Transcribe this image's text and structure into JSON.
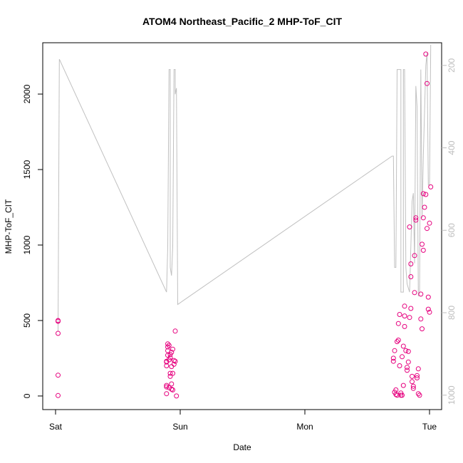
{
  "chart_data": {
    "type": "scatter",
    "title": "ATOM4 Northeast_Pacific_2 MHP-ToF_CIT",
    "xlabel": "Date",
    "ylabel": "MHP-ToF_CIT",
    "x_axis": {
      "min_day": 0,
      "max_day": 3,
      "ticks": [
        {
          "day": 0,
          "label": "Sat"
        },
        {
          "day": 1,
          "label": "Sun"
        },
        {
          "day": 2,
          "label": "Mon"
        },
        {
          "day": 3,
          "label": "Tue"
        }
      ]
    },
    "ylim": [
      -90,
      2340
    ],
    "yticks": [
      0,
      500,
      1000,
      1500,
      2000
    ],
    "y2lim": [
      1035,
      145
    ],
    "y2ticks": [
      200,
      400,
      600,
      800,
      1000
    ],
    "grid": false,
    "series": [
      {
        "color": "#e6007e",
        "points": [
          [
            0.02,
            500
          ],
          [
            0.02,
            495
          ],
          [
            0.02,
            415
          ],
          [
            0.02,
            138
          ],
          [
            0.02,
            3
          ],
          [
            0.89,
            15
          ],
          [
            0.89,
            60
          ],
          [
            0.89,
            70
          ],
          [
            0.89,
            200
          ],
          [
            0.89,
            225
          ],
          [
            0.89,
            230
          ],
          [
            0.9,
            270
          ],
          [
            0.9,
            300
          ],
          [
            0.9,
            325
          ],
          [
            0.9,
            345
          ],
          [
            0.91,
            335
          ],
          [
            0.91,
            55
          ],
          [
            0.91,
            240
          ],
          [
            0.92,
            130
          ],
          [
            0.92,
            150
          ],
          [
            0.92,
            255
          ],
          [
            0.92,
            275
          ],
          [
            0.93,
            45
          ],
          [
            0.93,
            80
          ],
          [
            0.93,
            195
          ],
          [
            0.93,
            290
          ],
          [
            0.94,
            40
          ],
          [
            0.94,
            150
          ],
          [
            0.94,
            310
          ],
          [
            0.95,
            210
          ],
          [
            0.95,
            235
          ],
          [
            0.96,
            230
          ],
          [
            0.96,
            430
          ],
          [
            0.97,
            0
          ],
          [
            2.71,
            230
          ],
          [
            2.71,
            250
          ],
          [
            2.72,
            300
          ],
          [
            2.72,
            25
          ],
          [
            2.73,
            10
          ],
          [
            2.73,
            40
          ],
          [
            2.74,
            5
          ],
          [
            2.74,
            360
          ],
          [
            2.75,
            370
          ],
          [
            2.75,
            480
          ],
          [
            2.76,
            540
          ],
          [
            2.76,
            200
          ],
          [
            2.77,
            20
          ],
          [
            2.77,
            5
          ],
          [
            2.78,
            5
          ],
          [
            2.78,
            260
          ],
          [
            2.79,
            70
          ],
          [
            2.79,
            330
          ],
          [
            2.8,
            460
          ],
          [
            2.8,
            595
          ],
          [
            2.8,
            530
          ],
          [
            2.81,
            300
          ],
          [
            2.82,
            190
          ],
          [
            2.82,
            170
          ],
          [
            2.83,
            295
          ],
          [
            2.83,
            225
          ],
          [
            2.84,
            520
          ],
          [
            2.84,
            1120
          ],
          [
            2.85,
            580
          ],
          [
            2.85,
            875
          ],
          [
            2.85,
            790
          ],
          [
            2.86,
            95
          ],
          [
            2.86,
            130
          ],
          [
            2.87,
            50
          ],
          [
            2.87,
            65
          ],
          [
            2.88,
            685
          ],
          [
            2.88,
            930
          ],
          [
            2.89,
            1165
          ],
          [
            2.89,
            1180
          ],
          [
            2.9,
            135
          ],
          [
            2.9,
            120
          ],
          [
            2.91,
            180
          ],
          [
            2.91,
            15
          ],
          [
            2.92,
            5
          ],
          [
            2.93,
            675
          ],
          [
            2.93,
            510
          ],
          [
            2.94,
            445
          ],
          [
            2.94,
            1005
          ],
          [
            2.95,
            965
          ],
          [
            2.95,
            1340
          ],
          [
            2.95,
            1180
          ],
          [
            2.96,
            1250
          ],
          [
            2.97,
            2265
          ],
          [
            2.97,
            1335
          ],
          [
            2.98,
            1110
          ],
          [
            2.98,
            2070
          ],
          [
            2.99,
            655
          ],
          [
            2.99,
            575
          ],
          [
            3.0,
            555
          ],
          [
            3.0,
            1145
          ],
          [
            3.01,
            1385
          ]
        ]
      }
    ],
    "secondary_line": {
      "color": "#c0c0c0",
      "points": [
        [
          0.02,
          845
        ],
        [
          0.03,
          185
        ],
        [
          0.89,
          750
        ],
        [
          0.9,
          640
        ],
        [
          0.91,
          210
        ],
        [
          0.92,
          210
        ],
        [
          0.92,
          690
        ],
        [
          0.93,
          710
        ],
        [
          0.94,
          640
        ],
        [
          0.95,
          210
        ],
        [
          0.96,
          210
        ],
        [
          0.96,
          270
        ],
        [
          0.97,
          255
        ],
        [
          0.98,
          780
        ],
        [
          2.7,
          420
        ],
        [
          2.71,
          420
        ],
        [
          2.72,
          690
        ],
        [
          2.73,
          690
        ],
        [
          2.74,
          210
        ],
        [
          2.77,
          210
        ],
        [
          2.77,
          750
        ],
        [
          2.79,
          750
        ],
        [
          2.79,
          210
        ],
        [
          2.8,
          210
        ],
        [
          2.81,
          690
        ],
        [
          2.82,
          730
        ],
        [
          2.84,
          750
        ],
        [
          2.85,
          640
        ],
        [
          2.86,
          530
        ],
        [
          2.87,
          510
        ],
        [
          2.88,
          680
        ],
        [
          2.89,
          250
        ],
        [
          2.9,
          300
        ],
        [
          2.91,
          760
        ],
        [
          2.92,
          750
        ],
        [
          2.93,
          210
        ],
        [
          2.94,
          570
        ],
        [
          2.95,
          420
        ],
        [
          2.97,
          200
        ],
        [
          2.98,
          170
        ],
        [
          2.99,
          490
        ],
        [
          3.0,
          490
        ],
        [
          3.01,
          150
        ]
      ]
    }
  }
}
